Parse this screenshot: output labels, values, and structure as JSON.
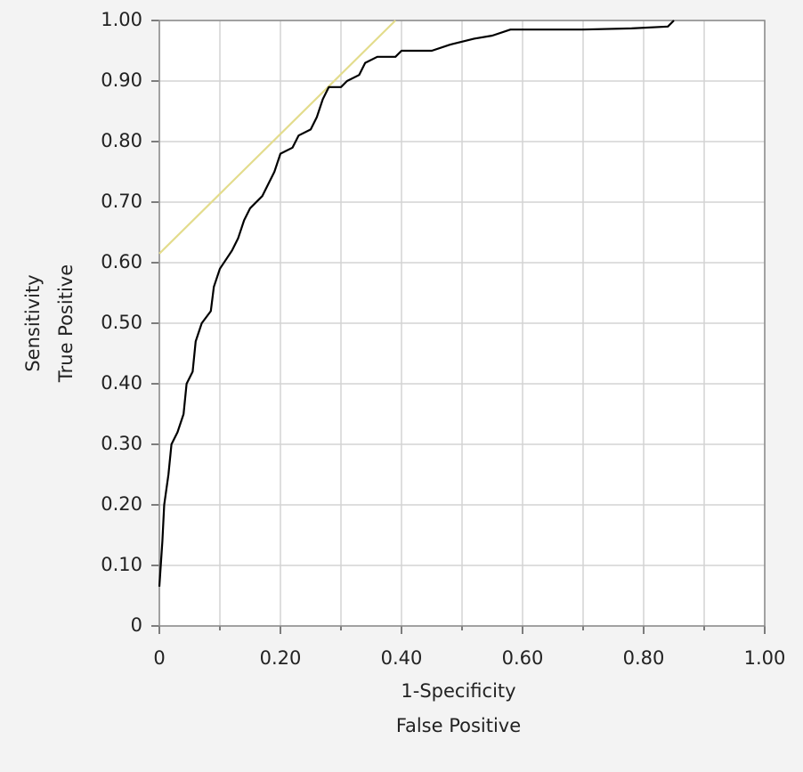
{
  "chart_data": {
    "type": "line",
    "xlabel": [
      "1-Specificity",
      "False Positive"
    ],
    "ylabel": [
      "Sensitivity",
      "True Positive"
    ],
    "xlim": [
      0,
      1
    ],
    "ylim": [
      0,
      1
    ],
    "xticks": [
      0,
      {
        "value": 0.2,
        "label": "0.20"
      },
      {
        "value": 0.4,
        "label": "0.40"
      },
      {
        "value": 0.6,
        "label": "0.60"
      },
      {
        "value": 0.8,
        "label": "0.80"
      },
      {
        "value": 1,
        "label": "1.00"
      }
    ],
    "xminorticks": [
      0.1,
      0.3,
      0.5,
      0.7,
      0.9
    ],
    "yticks": [
      0,
      {
        "value": 0.1,
        "label": "0.10"
      },
      {
        "value": 0.2,
        "label": "0.20"
      },
      {
        "value": 0.3,
        "label": "0.30"
      },
      {
        "value": 0.4,
        "label": "0.40"
      },
      {
        "value": 0.5,
        "label": "0.50"
      },
      {
        "value": 0.6,
        "label": "0.60"
      },
      {
        "value": 0.7,
        "label": "0.70"
      },
      {
        "value": 0.8,
        "label": "0.80"
      },
      {
        "value": 0.9,
        "label": "0.90"
      },
      {
        "value": 1,
        "label": "1.00"
      }
    ],
    "grid": true,
    "series": [
      {
        "color": "#e3dc8c",
        "x": [
          0,
          0.39
        ],
        "values": [
          0.615,
          1.0
        ]
      },
      {
        "color": "#000000",
        "x": [
          0,
          0.005,
          0.008,
          0.015,
          0.02,
          0.03,
          0.04,
          0.045,
          0.055,
          0.06,
          0.07,
          0.085,
          0.09,
          0.1,
          0.12,
          0.13,
          0.14,
          0.15,
          0.17,
          0.18,
          0.19,
          0.2,
          0.22,
          0.23,
          0.25,
          0.26,
          0.27,
          0.28,
          0.3,
          0.31,
          0.33,
          0.34,
          0.36,
          0.39,
          0.4,
          0.45,
          0.48,
          0.5,
          0.52,
          0.55,
          0.58,
          0.7,
          0.78,
          0.84,
          0.85
        ],
        "values": [
          0.065,
          0.14,
          0.2,
          0.25,
          0.3,
          0.32,
          0.35,
          0.4,
          0.42,
          0.47,
          0.5,
          0.52,
          0.56,
          0.59,
          0.62,
          0.64,
          0.67,
          0.69,
          0.71,
          0.73,
          0.75,
          0.78,
          0.79,
          0.81,
          0.82,
          0.84,
          0.87,
          0.89,
          0.89,
          0.9,
          0.91,
          0.93,
          0.94,
          0.94,
          0.95,
          0.95,
          0.96,
          0.965,
          0.97,
          0.975,
          0.985,
          0.985,
          0.987,
          0.99,
          1.0
        ]
      }
    ]
  }
}
